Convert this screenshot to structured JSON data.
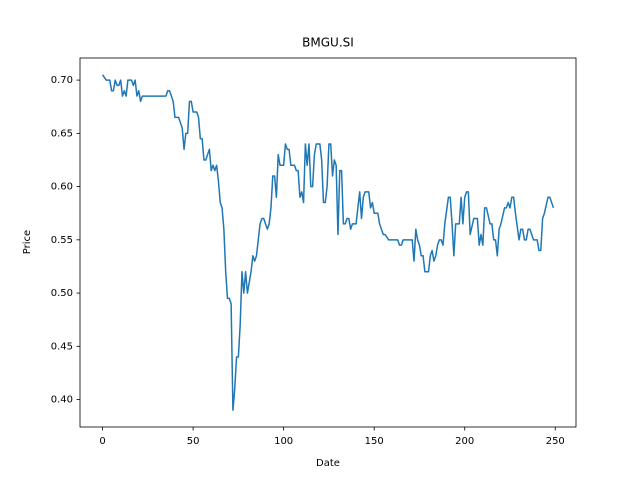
{
  "chart_data": {
    "type": "line",
    "title": "BMGU.SI",
    "x_label": "Date",
    "y_label": "Price",
    "color": "#1f77b4",
    "x": [
      0,
      2,
      4,
      5,
      6,
      7,
      8,
      9,
      10,
      11,
      12,
      13,
      14,
      16,
      17,
      18,
      19,
      20,
      21,
      22,
      25,
      30,
      35,
      36,
      37,
      38,
      39,
      40,
      42,
      43,
      44,
      45,
      46,
      47,
      48,
      49,
      50,
      52,
      53,
      54,
      55,
      56,
      57,
      58,
      59,
      60,
      61,
      62,
      63,
      64,
      65,
      66,
      67,
      68,
      69,
      70,
      71,
      72,
      73,
      74,
      75,
      76,
      77,
      78,
      79,
      80,
      81,
      82,
      83,
      84,
      85,
      86,
      87,
      88,
      89,
      90,
      91,
      92,
      93,
      94,
      95,
      96,
      97,
      98,
      99,
      100,
      101,
      102,
      103,
      104,
      106,
      107,
      108,
      109,
      110,
      111,
      112,
      113,
      114,
      115,
      116,
      117,
      118,
      120,
      121,
      122,
      123,
      124,
      125,
      126,
      127,
      128,
      129,
      130,
      131,
      132,
      133,
      134,
      135,
      136,
      137,
      138,
      140,
      141,
      142,
      143,
      144,
      145,
      147,
      148,
      149,
      150,
      152,
      153,
      154,
      155,
      156,
      158,
      160,
      163,
      164,
      165,
      166,
      170,
      171,
      172,
      173,
      174,
      175,
      176,
      177,
      178,
      180,
      181,
      182,
      183,
      184,
      185,
      186,
      187,
      188,
      189,
      191,
      192,
      193,
      194,
      195,
      197,
      198,
      199,
      200,
      201,
      202,
      203,
      205,
      207,
      208,
      209,
      210,
      211,
      212,
      214,
      215,
      216,
      217,
      218,
      219,
      220,
      222,
      223,
      224,
      225,
      226,
      227,
      228,
      230,
      231,
      232,
      233,
      234,
      235,
      236,
      238,
      239,
      240,
      241,
      242,
      243,
      244,
      246,
      247,
      248,
      249
    ],
    "values": [
      0.705,
      0.7,
      0.7,
      0.69,
      0.69,
      0.7,
      0.695,
      0.695,
      0.7,
      0.685,
      0.69,
      0.685,
      0.7,
      0.7,
      0.695,
      0.7,
      0.685,
      0.69,
      0.68,
      0.685,
      0.685,
      0.685,
      0.685,
      0.69,
      0.69,
      0.685,
      0.68,
      0.665,
      0.665,
      0.66,
      0.655,
      0.635,
      0.65,
      0.65,
      0.68,
      0.68,
      0.67,
      0.67,
      0.665,
      0.645,
      0.645,
      0.625,
      0.625,
      0.63,
      0.635,
      0.615,
      0.62,
      0.615,
      0.62,
      0.605,
      0.585,
      0.58,
      0.56,
      0.52,
      0.495,
      0.495,
      0.49,
      0.39,
      0.41,
      0.44,
      0.44,
      0.47,
      0.52,
      0.5,
      0.52,
      0.5,
      0.51,
      0.52,
      0.535,
      0.53,
      0.535,
      0.55,
      0.565,
      0.57,
      0.57,
      0.565,
      0.56,
      0.565,
      0.58,
      0.61,
      0.61,
      0.59,
      0.63,
      0.62,
      0.62,
      0.62,
      0.64,
      0.635,
      0.635,
      0.62,
      0.62,
      0.615,
      0.615,
      0.59,
      0.595,
      0.585,
      0.64,
      0.62,
      0.64,
      0.6,
      0.6,
      0.63,
      0.64,
      0.64,
      0.625,
      0.585,
      0.585,
      0.6,
      0.64,
      0.64,
      0.61,
      0.625,
      0.62,
      0.555,
      0.615,
      0.615,
      0.565,
      0.565,
      0.57,
      0.57,
      0.56,
      0.565,
      0.565,
      0.58,
      0.595,
      0.57,
      0.59,
      0.595,
      0.595,
      0.58,
      0.585,
      0.575,
      0.575,
      0.565,
      0.56,
      0.555,
      0.555,
      0.55,
      0.55,
      0.55,
      0.545,
      0.545,
      0.55,
      0.55,
      0.55,
      0.53,
      0.56,
      0.55,
      0.545,
      0.535,
      0.535,
      0.52,
      0.52,
      0.535,
      0.54,
      0.53,
      0.535,
      0.545,
      0.55,
      0.55,
      0.545,
      0.565,
      0.59,
      0.59,
      0.565,
      0.535,
      0.565,
      0.565,
      0.59,
      0.565,
      0.59,
      0.595,
      0.595,
      0.555,
      0.57,
      0.57,
      0.545,
      0.555,
      0.545,
      0.58,
      0.58,
      0.565,
      0.565,
      0.55,
      0.55,
      0.535,
      0.56,
      0.565,
      0.58,
      0.58,
      0.585,
      0.58,
      0.59,
      0.59,
      0.575,
      0.55,
      0.56,
      0.56,
      0.55,
      0.55,
      0.56,
      0.56,
      0.55,
      0.55,
      0.55,
      0.54,
      0.54,
      0.57,
      0.575,
      0.59,
      0.59,
      0.585,
      0.58
    ],
    "xlim": [
      -12.45,
      261.45
    ],
    "ylim": [
      0.37425,
      0.72075
    ],
    "xticks": [
      0,
      50,
      100,
      150,
      200,
      250
    ],
    "yticks": [
      {
        "value": 0.4,
        "label": "0.40"
      },
      {
        "value": 0.45,
        "label": "0.45"
      },
      {
        "value": 0.5,
        "label": "0.50"
      },
      {
        "value": 0.55,
        "label": "0.55"
      },
      {
        "value": 0.6,
        "label": "0.60"
      },
      {
        "value": 0.65,
        "label": "0.65"
      },
      {
        "value": 0.7,
        "label": "0.70"
      }
    ],
    "grid": false
  }
}
